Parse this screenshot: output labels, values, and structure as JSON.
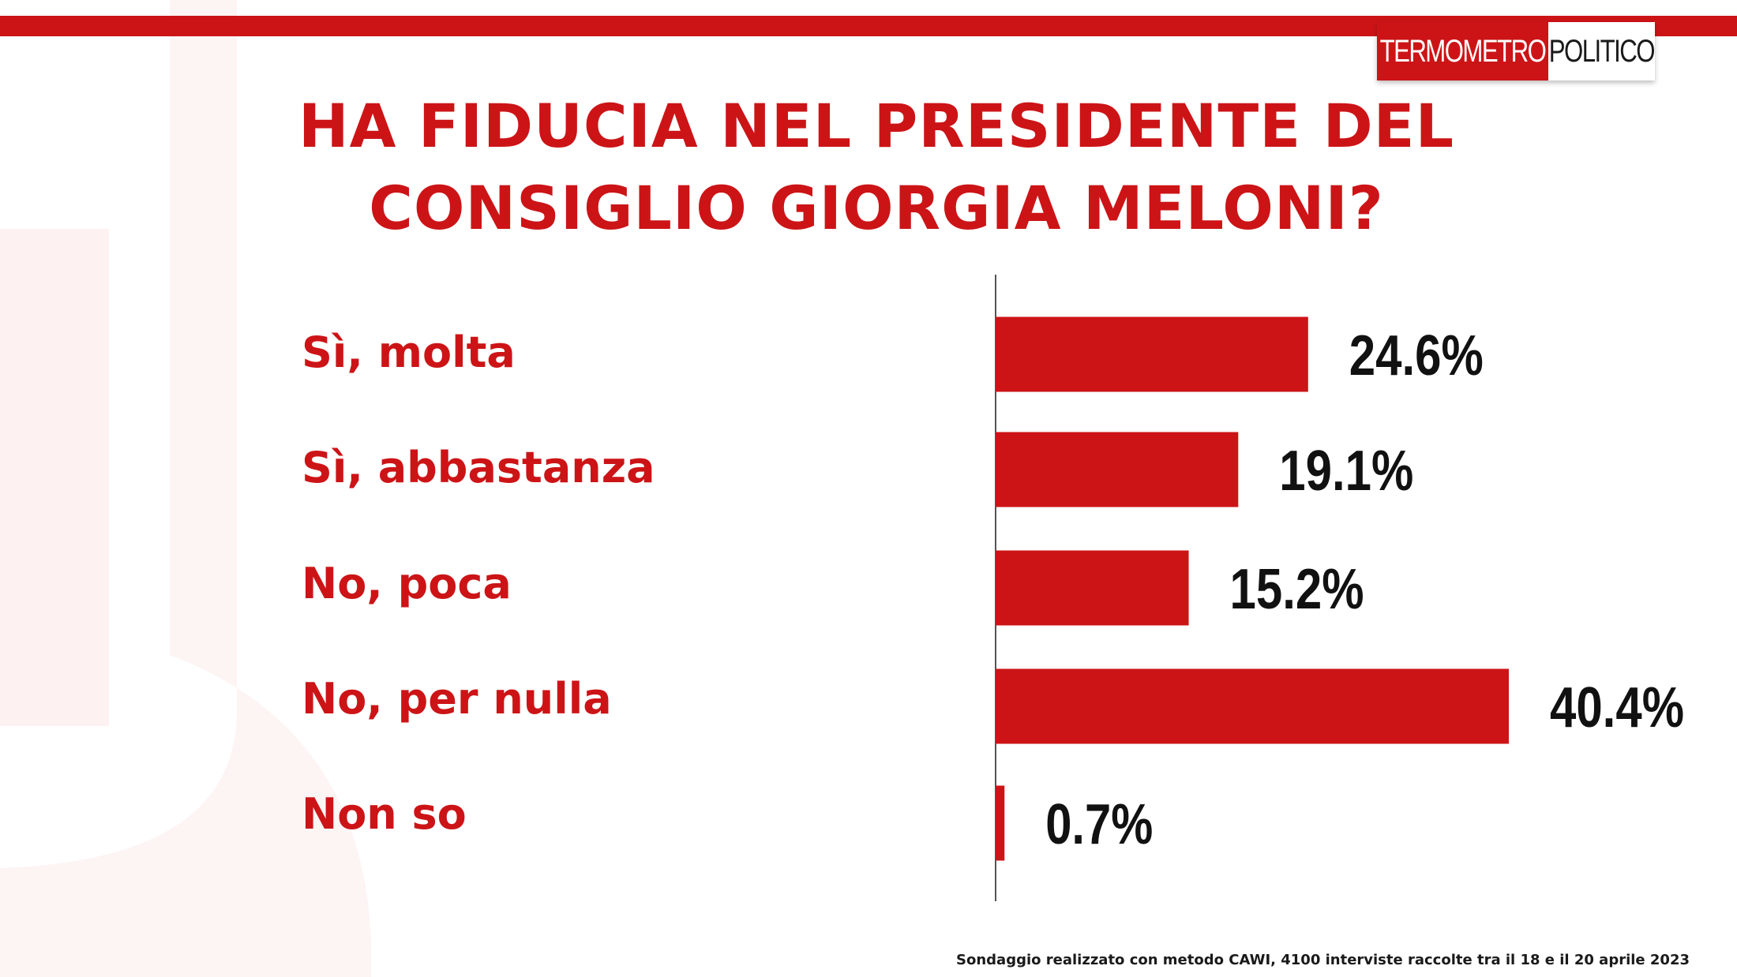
{
  "title": "HA FIDUCIA NEL PRESIDENTE DEL CONSIGLIO GIORGIA MELONI?",
  "logo": {
    "part1": "TERMOMETRO",
    "part2": "POLITICO"
  },
  "footnote": "Sondaggio realizzato con metodo CAWI, 4100 interviste raccolte tra il 18 e il 20 aprile 2023",
  "colors": {
    "accent": "#cc1417",
    "text": "#111111",
    "axis": "#555555"
  },
  "chart_data": {
    "type": "bar",
    "orientation": "horizontal",
    "categories": [
      "Sì, molta",
      "Sì, abbastanza",
      "No, poca",
      "No, per nulla",
      "Non so"
    ],
    "values": [
      24.6,
      19.1,
      15.2,
      40.4,
      0.7
    ],
    "value_labels": [
      "24.6%",
      "19.1%",
      "15.2%",
      "40.4%",
      "0.7%"
    ],
    "xlim": [
      0,
      40.4
    ],
    "grid": false,
    "legend": "none"
  }
}
